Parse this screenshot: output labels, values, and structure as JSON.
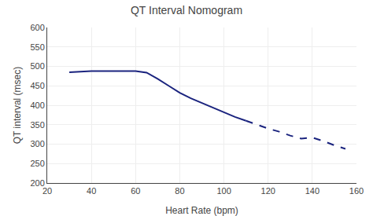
{
  "chart_data": {
    "type": "line",
    "title": "QT Interval Nomogram",
    "xlabel": "Heart Rate (bpm)",
    "ylabel": "QT interval (msec)",
    "xlim": [
      20,
      160
    ],
    "ylim": [
      200,
      600
    ],
    "xticks": [
      20,
      40,
      60,
      80,
      100,
      120,
      140,
      160
    ],
    "yticks": [
      200,
      250,
      300,
      350,
      400,
      450,
      500,
      550,
      600
    ],
    "grid": true,
    "series": [
      {
        "color": "#1a237e",
        "line_style": "solid",
        "x": [
          30,
          35,
          40,
          45,
          50,
          55,
          60,
          65,
          70,
          75,
          80,
          85,
          90,
          95,
          100,
          105,
          110
        ],
        "values": [
          485,
          487,
          488,
          488,
          488,
          488,
          488,
          484,
          468,
          450,
          432,
          418,
          406,
          393,
          381,
          370,
          360
        ]
      },
      {
        "color": "#1a237e",
        "line_style": "dashed",
        "x": [
          110,
          115,
          120,
          125,
          130,
          135,
          140,
          145,
          150,
          155
        ],
        "values": [
          360,
          350,
          340,
          332,
          322,
          314,
          317,
          308,
          297,
          288
        ]
      }
    ]
  }
}
